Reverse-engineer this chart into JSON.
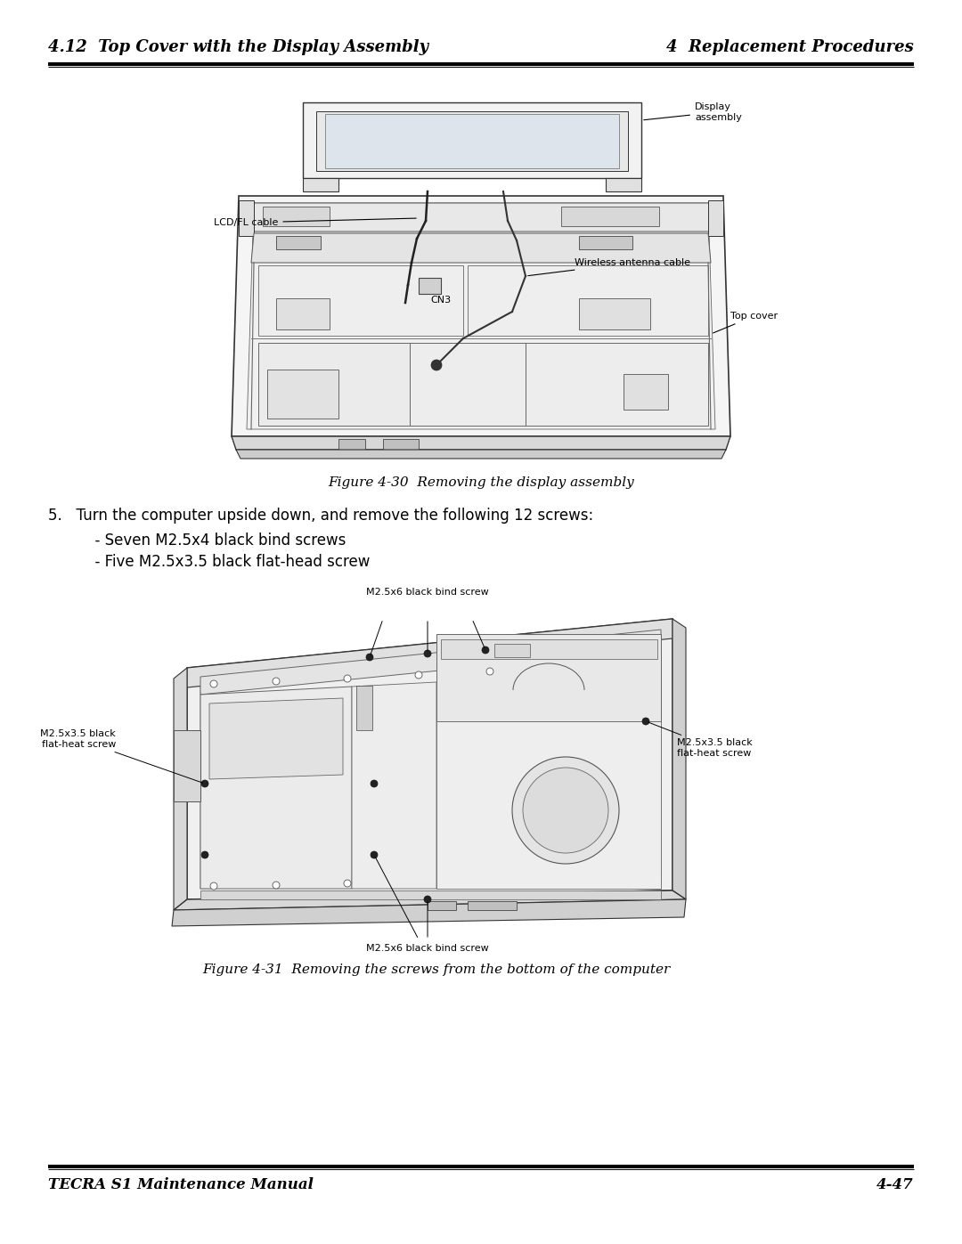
{
  "page_bg": "#ffffff",
  "header_left": "4.12  Top Cover with the Display Assembly",
  "header_right": "4  Replacement Procedures",
  "footer_left": "TECRA S1 Maintenance Manual",
  "footer_right": "4-47",
  "figure1_caption": "Figure 4-30  Removing the display assembly",
  "figure2_caption": "Figure 4-31  Removing the screws from the bottom of the computer",
  "step_text_line1": "5.   Turn the computer upside down, and remove the following 12 screws:",
  "step_text_line2": "      - Seven M2.5x4 black bind screws",
  "step_text_line3": "      - Five M2.5x3.5 black flat-head screw",
  "header_fontsize": 13,
  "footer_fontsize": 12,
  "caption_fontsize": 11,
  "step_fontsize": 12,
  "label_fontsize": 8
}
